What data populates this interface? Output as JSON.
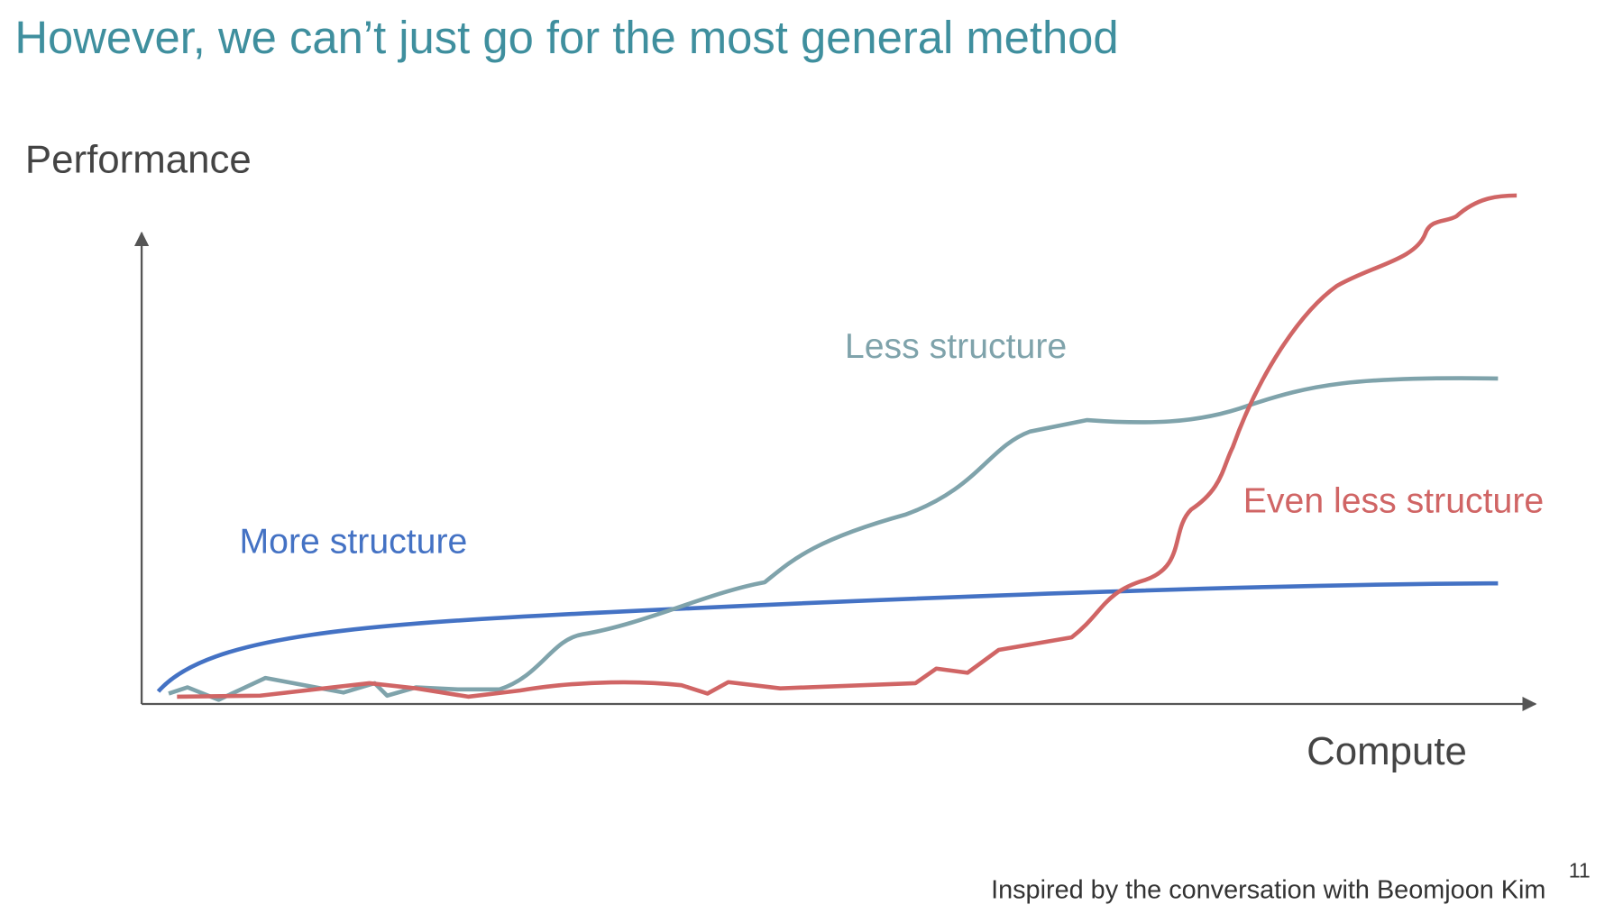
{
  "title": "However, we can’t just go for the most general method",
  "axes": {
    "y_label": "Performance",
    "x_label": "Compute"
  },
  "curves": [
    {
      "label": "More structure"
    },
    {
      "label": "Less structure"
    },
    {
      "label": "Even less structure"
    }
  ],
  "footer": "Inspired by the conversation with Beomjoon Kim",
  "page_number": "11"
}
